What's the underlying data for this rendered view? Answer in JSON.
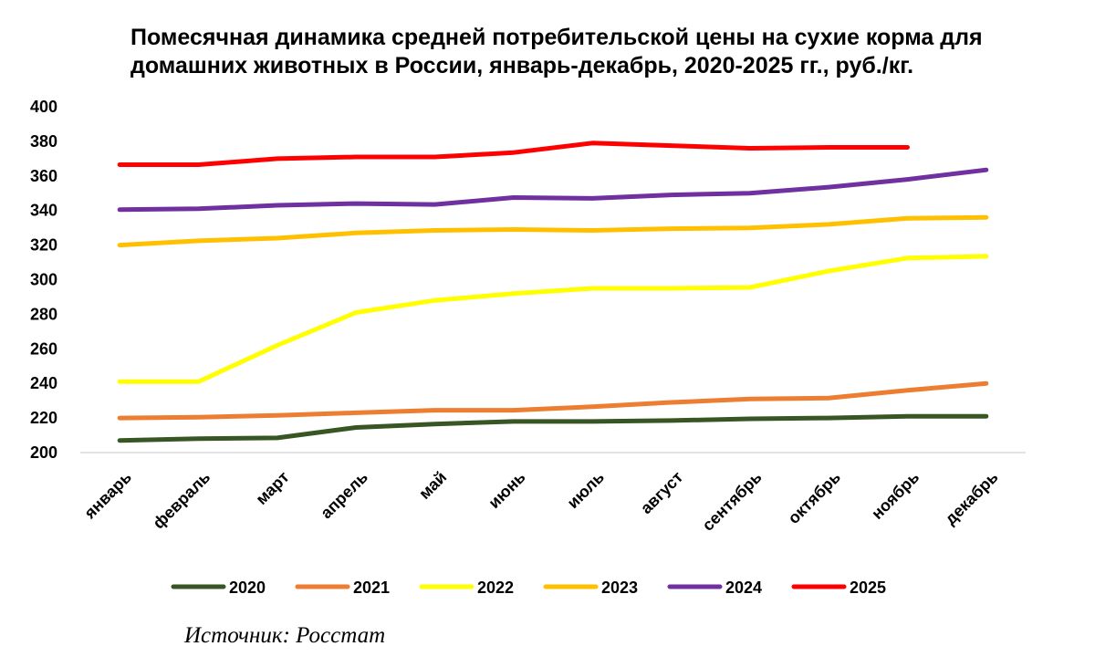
{
  "chart_data": {
    "type": "line",
    "title": "Помесячная динамика средней потребительской цены на сухие корма для домашних животных в России, январь-декабрь, 2020-2025 гг., руб./кг.",
    "xlabel": "",
    "ylabel": "",
    "ylim": [
      200,
      400
    ],
    "yticks": [
      "200",
      "220",
      "240",
      "260",
      "280",
      "300",
      "320",
      "340",
      "360",
      "380",
      "400"
    ],
    "grid": false,
    "legend_position": "bottom",
    "categories": [
      "январь",
      "февраль",
      "март",
      "апрель",
      "май",
      "июнь",
      "июль",
      "август",
      "сентябрь",
      "октябрь",
      "ноябрь",
      "декабрь"
    ],
    "series": [
      {
        "name": "2020",
        "color": "#375623",
        "values": [
          207,
          208,
          208.5,
          214.5,
          216.5,
          218,
          218,
          218.5,
          219.5,
          220,
          221,
          221
        ]
      },
      {
        "name": "2021",
        "color": "#ED7D31",
        "values": [
          220,
          220.5,
          221.5,
          223,
          224.5,
          224.5,
          226.5,
          229,
          231,
          231.5,
          236,
          240
        ]
      },
      {
        "name": "2022",
        "color": "#FFFF00",
        "values": [
          241,
          241,
          262,
          281,
          288,
          292,
          295,
          295,
          295.5,
          305,
          312.5,
          313.5
        ]
      },
      {
        "name": "2023",
        "color": "#FFC000",
        "values": [
          320,
          322.5,
          324,
          327,
          328.5,
          329,
          328.5,
          329.5,
          330,
          332,
          335.5,
          336
        ]
      },
      {
        "name": "2024",
        "color": "#7030A0",
        "values": [
          340.5,
          341,
          343,
          344,
          343.5,
          347.5,
          347,
          349,
          350,
          353.5,
          358,
          363.5
        ]
      },
      {
        "name": "2025",
        "color": "#FF0000",
        "values": [
          366.5,
          366.5,
          370,
          371,
          371,
          373.5,
          379,
          377.5,
          376,
          376.5,
          376.5,
          null
        ]
      }
    ]
  },
  "source": "Источник: Росстат"
}
